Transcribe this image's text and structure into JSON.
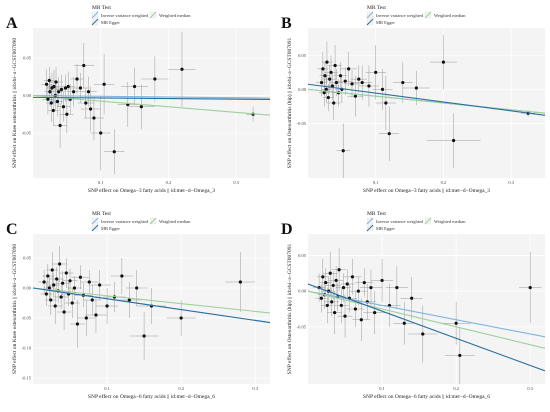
{
  "figure": {
    "legend_title": "MR Test",
    "legend_items": [
      {
        "key": "ivw",
        "label": "Inverse variance weighted",
        "color": "#7fb3e0"
      },
      {
        "key": "egger",
        "label": "MR Egger",
        "color": "#2a6f9e"
      },
      {
        "key": "wm",
        "label": "Weighted median",
        "color": "#9ecf9a"
      }
    ]
  },
  "chart_data": [
    {
      "panel_label": "A",
      "type": "scatter",
      "xlabel": "SNP effect on Omega−3 fatty acids || id:met−d−Omega_3",
      "ylabel": "SNP effect on Knee osteoarthritis || id:ebi−a−GCST007090",
      "xlim": [
        0,
        0.35
      ],
      "ylim": [
        -0.11,
        0.09
      ],
      "xticks": [
        0.1,
        0.2,
        0.3
      ],
      "xtick_labels": [
        "0.1",
        "0.2",
        "0.3"
      ],
      "yticks": [
        0.05,
        0.0,
        -0.05
      ],
      "ytick_labels": [
        "0.05",
        "0.00",
        "-0.05"
      ],
      "points": [
        {
          "x": 0.02,
          "y": 0.015,
          "ex": 0.008,
          "ey": 0.02
        },
        {
          "x": 0.022,
          "y": -0.005,
          "ex": 0.008,
          "ey": 0.02
        },
        {
          "x": 0.024,
          "y": 0.02,
          "ex": 0.008,
          "ey": 0.018
        },
        {
          "x": 0.025,
          "y": 0.005,
          "ex": 0.008,
          "ey": 0.02
        },
        {
          "x": 0.027,
          "y": -0.01,
          "ex": 0.008,
          "ey": 0.025
        },
        {
          "x": 0.028,
          "y": 0.01,
          "ex": 0.008,
          "ey": 0.02
        },
        {
          "x": 0.03,
          "y": -0.02,
          "ex": 0.008,
          "ey": 0.02
        },
        {
          "x": 0.031,
          "y": 0.012,
          "ex": 0.01,
          "ey": 0.022
        },
        {
          "x": 0.033,
          "y": 0.0,
          "ex": 0.01,
          "ey": 0.02
        },
        {
          "x": 0.034,
          "y": 0.018,
          "ex": 0.01,
          "ey": 0.02
        },
        {
          "x": 0.036,
          "y": -0.008,
          "ex": 0.01,
          "ey": 0.02
        },
        {
          "x": 0.038,
          "y": 0.005,
          "ex": 0.01,
          "ey": 0.02
        },
        {
          "x": 0.04,
          "y": -0.04,
          "ex": 0.01,
          "ey": 0.03
        },
        {
          "x": 0.042,
          "y": 0.008,
          "ex": 0.01,
          "ey": 0.02
        },
        {
          "x": 0.045,
          "y": -0.015,
          "ex": 0.01,
          "ey": 0.02
        },
        {
          "x": 0.048,
          "y": 0.01,
          "ex": 0.01,
          "ey": 0.018
        },
        {
          "x": 0.05,
          "y": -0.025,
          "ex": 0.01,
          "ey": 0.025
        },
        {
          "x": 0.052,
          "y": 0.012,
          "ex": 0.01,
          "ey": 0.02
        },
        {
          "x": 0.055,
          "y": -0.005,
          "ex": 0.01,
          "ey": 0.02
        },
        {
          "x": 0.06,
          "y": 0.005,
          "ex": 0.01,
          "ey": 0.02
        },
        {
          "x": 0.065,
          "y": 0.022,
          "ex": 0.01,
          "ey": 0.02
        },
        {
          "x": 0.07,
          "y": 0.01,
          "ex": 0.012,
          "ey": 0.02
        },
        {
          "x": 0.075,
          "y": 0.04,
          "ex": 0.015,
          "ey": 0.03
        },
        {
          "x": 0.078,
          "y": -0.01,
          "ex": 0.012,
          "ey": 0.02
        },
        {
          "x": 0.082,
          "y": 0.005,
          "ex": 0.012,
          "ey": 0.02
        },
        {
          "x": 0.085,
          "y": -0.018,
          "ex": 0.015,
          "ey": 0.03
        },
        {
          "x": 0.09,
          "y": -0.03,
          "ex": 0.015,
          "ey": 0.03
        },
        {
          "x": 0.1,
          "y": -0.05,
          "ex": 0.015,
          "ey": 0.05
        },
        {
          "x": 0.105,
          "y": 0.015,
          "ex": 0.015,
          "ey": 0.04
        },
        {
          "x": 0.12,
          "y": -0.075,
          "ex": 0.015,
          "ey": 0.03
        },
        {
          "x": 0.14,
          "y": -0.012,
          "ex": 0.015,
          "ey": 0.03
        },
        {
          "x": 0.15,
          "y": 0.012,
          "ex": 0.02,
          "ey": 0.025
        },
        {
          "x": 0.16,
          "y": -0.015,
          "ex": 0.02,
          "ey": 0.03
        },
        {
          "x": 0.18,
          "y": 0.022,
          "ex": 0.02,
          "ey": 0.03
        },
        {
          "x": 0.22,
          "y": 0.035,
          "ex": 0.02,
          "ey": 0.05
        },
        {
          "x": 0.325,
          "y": -0.025,
          "ex": 0.01,
          "ey": 0.01
        }
      ],
      "lines": [
        {
          "key": "ivw",
          "intercept": 0.0,
          "slope": -0.01
        },
        {
          "key": "wm",
          "intercept": 0.0,
          "slope": -0.075
        },
        {
          "key": "egger",
          "intercept": -0.0025,
          "slope": -0.008
        }
      ]
    },
    {
      "panel_label": "B",
      "type": "scatter",
      "xlabel": "SNP effect on Omega−3 fatty acids || id:met−d−Omega_3",
      "ylabel": "SNP effect on Osteoarthritis (hip) || id:ebi−a−GCST007091",
      "xlim": [
        0,
        0.35
      ],
      "ylim": [
        -0.13,
        0.09
      ],
      "xticks": [
        0.1,
        0.2,
        0.3
      ],
      "xtick_labels": [
        "0.1",
        "0.2",
        "0.3"
      ],
      "yticks": [
        0.05,
        0.0,
        -0.05
      ],
      "ytick_labels": [
        "0.05",
        "0.00",
        "-0.05"
      ],
      "points": [
        {
          "x": 0.02,
          "y": 0.01,
          "ex": 0.008,
          "ey": 0.02
        },
        {
          "x": 0.022,
          "y": 0.03,
          "ex": 0.008,
          "ey": 0.025
        },
        {
          "x": 0.024,
          "y": -0.005,
          "ex": 0.008,
          "ey": 0.02
        },
        {
          "x": 0.025,
          "y": 0.02,
          "ex": 0.008,
          "ey": 0.02
        },
        {
          "x": 0.027,
          "y": 0.0,
          "ex": 0.008,
          "ey": 0.02
        },
        {
          "x": 0.028,
          "y": 0.04,
          "ex": 0.008,
          "ey": 0.03
        },
        {
          "x": 0.03,
          "y": -0.012,
          "ex": 0.008,
          "ey": 0.02
        },
        {
          "x": 0.032,
          "y": 0.015,
          "ex": 0.01,
          "ey": 0.02
        },
        {
          "x": 0.034,
          "y": 0.025,
          "ex": 0.01,
          "ey": 0.025
        },
        {
          "x": 0.036,
          "y": 0.005,
          "ex": 0.01,
          "ey": 0.02
        },
        {
          "x": 0.038,
          "y": -0.02,
          "ex": 0.01,
          "ey": 0.025
        },
        {
          "x": 0.04,
          "y": 0.035,
          "ex": 0.01,
          "ey": 0.03
        },
        {
          "x": 0.042,
          "y": 0.01,
          "ex": 0.01,
          "ey": 0.02
        },
        {
          "x": 0.045,
          "y": -0.005,
          "ex": 0.01,
          "ey": 0.02
        },
        {
          "x": 0.048,
          "y": 0.02,
          "ex": 0.01,
          "ey": 0.02
        },
        {
          "x": 0.05,
          "y": 0.0,
          "ex": 0.01,
          "ey": 0.02
        },
        {
          "x": 0.052,
          "y": -0.09,
          "ex": 0.01,
          "ey": 0.04
        },
        {
          "x": 0.055,
          "y": 0.012,
          "ex": 0.01,
          "ey": 0.02
        },
        {
          "x": 0.06,
          "y": 0.03,
          "ex": 0.012,
          "ey": 0.025
        },
        {
          "x": 0.065,
          "y": 0.008,
          "ex": 0.012,
          "ey": 0.02
        },
        {
          "x": 0.07,
          "y": -0.01,
          "ex": 0.012,
          "ey": 0.03
        },
        {
          "x": 0.075,
          "y": 0.015,
          "ex": 0.012,
          "ey": 0.02
        },
        {
          "x": 0.08,
          "y": 0.01,
          "ex": 0.015,
          "ey": 0.025
        },
        {
          "x": 0.09,
          "y": 0.005,
          "ex": 0.015,
          "ey": 0.03
        },
        {
          "x": 0.1,
          "y": 0.025,
          "ex": 0.015,
          "ey": 0.04
        },
        {
          "x": 0.11,
          "y": 0.0,
          "ex": 0.015,
          "ey": 0.03
        },
        {
          "x": 0.115,
          "y": -0.02,
          "ex": 0.015,
          "ey": 0.04
        },
        {
          "x": 0.12,
          "y": -0.065,
          "ex": 0.015,
          "ey": 0.04
        },
        {
          "x": 0.14,
          "y": 0.01,
          "ex": 0.015,
          "ey": 0.03
        },
        {
          "x": 0.16,
          "y": 0.002,
          "ex": 0.02,
          "ey": 0.025
        },
        {
          "x": 0.2,
          "y": 0.04,
          "ex": 0.02,
          "ey": 0.04
        },
        {
          "x": 0.215,
          "y": -0.075,
          "ex": 0.04,
          "ey": 0.04
        },
        {
          "x": 0.325,
          "y": -0.035,
          "ex": 0.01,
          "ey": 0.005
        }
      ],
      "lines": [
        {
          "key": "ivw",
          "intercept": 0.0,
          "slope": -0.1
        },
        {
          "key": "wm",
          "intercept": 0.0,
          "slope": -0.1
        },
        {
          "key": "egger",
          "intercept": 0.0075,
          "slope": -0.13
        }
      ]
    },
    {
      "panel_label": "C",
      "type": "scatter",
      "xlabel": "SNP effect on Omega−6 fatty acids || id:met−d−Omega_6",
      "ylabel": "SNP effect on Knee osteoarthritis || id:ebi−a−GCST007090",
      "xlim": [
        0,
        0.32
      ],
      "ylim": [
        -0.16,
        0.09
      ],
      "xticks": [
        0.1,
        0.2,
        0.3
      ],
      "xtick_labels": [
        "0.1",
        "0.2",
        "0.3"
      ],
      "yticks": [
        0.05,
        0.0,
        -0.05,
        -0.1,
        -0.15
      ],
      "ytick_labels": [
        "0.05",
        "0.00",
        "-0.05",
        "-0.10",
        "-0.15"
      ],
      "points": [
        {
          "x": 0.015,
          "y": 0.01,
          "ex": 0.008,
          "ey": 0.02
        },
        {
          "x": 0.018,
          "y": -0.01,
          "ex": 0.008,
          "ey": 0.02
        },
        {
          "x": 0.02,
          "y": 0.02,
          "ex": 0.008,
          "ey": 0.02
        },
        {
          "x": 0.022,
          "y": 0.0,
          "ex": 0.008,
          "ey": 0.02
        },
        {
          "x": 0.024,
          "y": -0.02,
          "ex": 0.008,
          "ey": 0.025
        },
        {
          "x": 0.026,
          "y": 0.03,
          "ex": 0.008,
          "ey": 0.03
        },
        {
          "x": 0.028,
          "y": 0.005,
          "ex": 0.008,
          "ey": 0.02
        },
        {
          "x": 0.03,
          "y": -0.03,
          "ex": 0.01,
          "ey": 0.03
        },
        {
          "x": 0.032,
          "y": 0.015,
          "ex": 0.01,
          "ey": 0.02
        },
        {
          "x": 0.034,
          "y": -0.005,
          "ex": 0.01,
          "ey": 0.02
        },
        {
          "x": 0.036,
          "y": 0.04,
          "ex": 0.01,
          "ey": 0.03
        },
        {
          "x": 0.038,
          "y": -0.015,
          "ex": 0.01,
          "ey": 0.02
        },
        {
          "x": 0.04,
          "y": 0.008,
          "ex": 0.01,
          "ey": 0.02
        },
        {
          "x": 0.042,
          "y": -0.04,
          "ex": 0.01,
          "ey": 0.03
        },
        {
          "x": 0.045,
          "y": 0.025,
          "ex": 0.01,
          "ey": 0.025
        },
        {
          "x": 0.048,
          "y": -0.01,
          "ex": 0.01,
          "ey": 0.02
        },
        {
          "x": 0.05,
          "y": 0.012,
          "ex": 0.01,
          "ey": 0.02
        },
        {
          "x": 0.053,
          "y": -0.025,
          "ex": 0.01,
          "ey": 0.025
        },
        {
          "x": 0.056,
          "y": 0.0,
          "ex": 0.01,
          "ey": 0.02
        },
        {
          "x": 0.06,
          "y": -0.06,
          "ex": 0.01,
          "ey": 0.04
        },
        {
          "x": 0.064,
          "y": 0.018,
          "ex": 0.012,
          "ey": 0.02
        },
        {
          "x": 0.068,
          "y": -0.012,
          "ex": 0.012,
          "ey": 0.02
        },
        {
          "x": 0.072,
          "y": -0.05,
          "ex": 0.012,
          "ey": 0.03
        },
        {
          "x": 0.076,
          "y": 0.01,
          "ex": 0.012,
          "ey": 0.02
        },
        {
          "x": 0.08,
          "y": -0.02,
          "ex": 0.012,
          "ey": 0.025
        },
        {
          "x": 0.085,
          "y": -0.045,
          "ex": 0.015,
          "ey": 0.03
        },
        {
          "x": 0.09,
          "y": 0.005,
          "ex": 0.015,
          "ey": 0.025
        },
        {
          "x": 0.1,
          "y": -0.03,
          "ex": 0.015,
          "ey": 0.03
        },
        {
          "x": 0.11,
          "y": -0.015,
          "ex": 0.015,
          "ey": 0.025
        },
        {
          "x": 0.12,
          "y": 0.02,
          "ex": 0.015,
          "ey": 0.03
        },
        {
          "x": 0.13,
          "y": -0.02,
          "ex": 0.015,
          "ey": 0.03
        },
        {
          "x": 0.14,
          "y": 0.0,
          "ex": 0.015,
          "ey": 0.03
        },
        {
          "x": 0.15,
          "y": -0.08,
          "ex": 0.02,
          "ey": 0.04
        },
        {
          "x": 0.16,
          "y": -0.03,
          "ex": 0.02,
          "ey": 0.03
        },
        {
          "x": 0.2,
          "y": -0.05,
          "ex": 0.02,
          "ey": 0.03
        },
        {
          "x": 0.28,
          "y": 0.01,
          "ex": 0.02,
          "ey": 0.05
        }
      ],
      "lines": [
        {
          "key": "ivw",
          "intercept": 0.0,
          "slope": -0.18
        },
        {
          "key": "wm",
          "intercept": 0.0,
          "slope": -0.13
        },
        {
          "key": "egger",
          "intercept": 0.0,
          "slope": -0.18
        }
      ]
    },
    {
      "panel_label": "D",
      "type": "scatter",
      "xlabel": "SNP effect on Omega−6 fatty acids || id:met−d−Omega_6",
      "ylabel": "SNP effect on Osteoarthritis (hip) || id:ebi−a−GCST007091",
      "xlim": [
        0,
        0.32
      ],
      "ylim": [
        -0.13,
        0.08
      ],
      "xticks": [
        0.1,
        0.2,
        0.3
      ],
      "xtick_labels": [
        "0.1",
        "0.2",
        "0.3"
      ],
      "yticks": [
        0.05,
        0.0,
        -0.05
      ],
      "ytick_labels": [
        "0.05",
        "0.00",
        "-0.05"
      ],
      "points": [
        {
          "x": 0.015,
          "y": 0.005,
          "ex": 0.008,
          "ey": 0.02
        },
        {
          "x": 0.018,
          "y": -0.01,
          "ex": 0.008,
          "ey": 0.02
        },
        {
          "x": 0.02,
          "y": 0.02,
          "ex": 0.008,
          "ey": 0.025
        },
        {
          "x": 0.022,
          "y": -0.005,
          "ex": 0.008,
          "ey": 0.02
        },
        {
          "x": 0.024,
          "y": 0.012,
          "ex": 0.008,
          "ey": 0.02
        },
        {
          "x": 0.026,
          "y": -0.02,
          "ex": 0.008,
          "ey": 0.025
        },
        {
          "x": 0.028,
          "y": 0.0,
          "ex": 0.008,
          "ey": 0.02
        },
        {
          "x": 0.03,
          "y": 0.025,
          "ex": 0.01,
          "ey": 0.03
        },
        {
          "x": 0.032,
          "y": -0.015,
          "ex": 0.01,
          "ey": 0.02
        },
        {
          "x": 0.034,
          "y": 0.008,
          "ex": 0.01,
          "ey": 0.02
        },
        {
          "x": 0.036,
          "y": -0.03,
          "ex": 0.01,
          "ey": 0.03
        },
        {
          "x": 0.038,
          "y": 0.015,
          "ex": 0.01,
          "ey": 0.02
        },
        {
          "x": 0.04,
          "y": -0.008,
          "ex": 0.01,
          "ey": 0.02
        },
        {
          "x": 0.042,
          "y": 0.03,
          "ex": 0.01,
          "ey": 0.03
        },
        {
          "x": 0.045,
          "y": -0.02,
          "ex": 0.01,
          "ey": 0.025
        },
        {
          "x": 0.048,
          "y": 0.005,
          "ex": 0.01,
          "ey": 0.02
        },
        {
          "x": 0.05,
          "y": -0.035,
          "ex": 0.01,
          "ey": 0.03
        },
        {
          "x": 0.053,
          "y": 0.01,
          "ex": 0.01,
          "ey": 0.02
        },
        {
          "x": 0.056,
          "y": -0.01,
          "ex": 0.01,
          "ey": 0.02
        },
        {
          "x": 0.06,
          "y": 0.02,
          "ex": 0.012,
          "ey": 0.025
        },
        {
          "x": 0.064,
          "y": -0.025,
          "ex": 0.012,
          "ey": 0.025
        },
        {
          "x": 0.068,
          "y": 0.0,
          "ex": 0.012,
          "ey": 0.02
        },
        {
          "x": 0.072,
          "y": -0.04,
          "ex": 0.012,
          "ey": 0.03
        },
        {
          "x": 0.076,
          "y": 0.012,
          "ex": 0.012,
          "ey": 0.02
        },
        {
          "x": 0.08,
          "y": -0.015,
          "ex": 0.012,
          "ey": 0.025
        },
        {
          "x": 0.085,
          "y": 0.005,
          "ex": 0.015,
          "ey": 0.025
        },
        {
          "x": 0.09,
          "y": -0.03,
          "ex": 0.015,
          "ey": 0.03
        },
        {
          "x": 0.1,
          "y": 0.015,
          "ex": 0.015,
          "ey": 0.03
        },
        {
          "x": 0.11,
          "y": -0.02,
          "ex": 0.015,
          "ey": 0.03
        },
        {
          "x": 0.12,
          "y": 0.005,
          "ex": 0.015,
          "ey": 0.03
        },
        {
          "x": 0.13,
          "y": -0.045,
          "ex": 0.015,
          "ey": 0.03
        },
        {
          "x": 0.14,
          "y": -0.01,
          "ex": 0.015,
          "ey": 0.03
        },
        {
          "x": 0.155,
          "y": -0.06,
          "ex": 0.02,
          "ey": 0.04
        },
        {
          "x": 0.2,
          "y": -0.045,
          "ex": 0.02,
          "ey": 0.03
        },
        {
          "x": 0.205,
          "y": -0.09,
          "ex": 0.02,
          "ey": 0.04
        },
        {
          "x": 0.3,
          "y": 0.005,
          "ex": 0.015,
          "ey": 0.05
        }
      ],
      "lines": [
        {
          "key": "ivw",
          "intercept": 0.0,
          "slope": -0.2
        },
        {
          "key": "wm",
          "intercept": 0.0,
          "slope": -0.25
        },
        {
          "key": "egger",
          "intercept": 0.01,
          "slope": -0.38
        }
      ]
    }
  ]
}
